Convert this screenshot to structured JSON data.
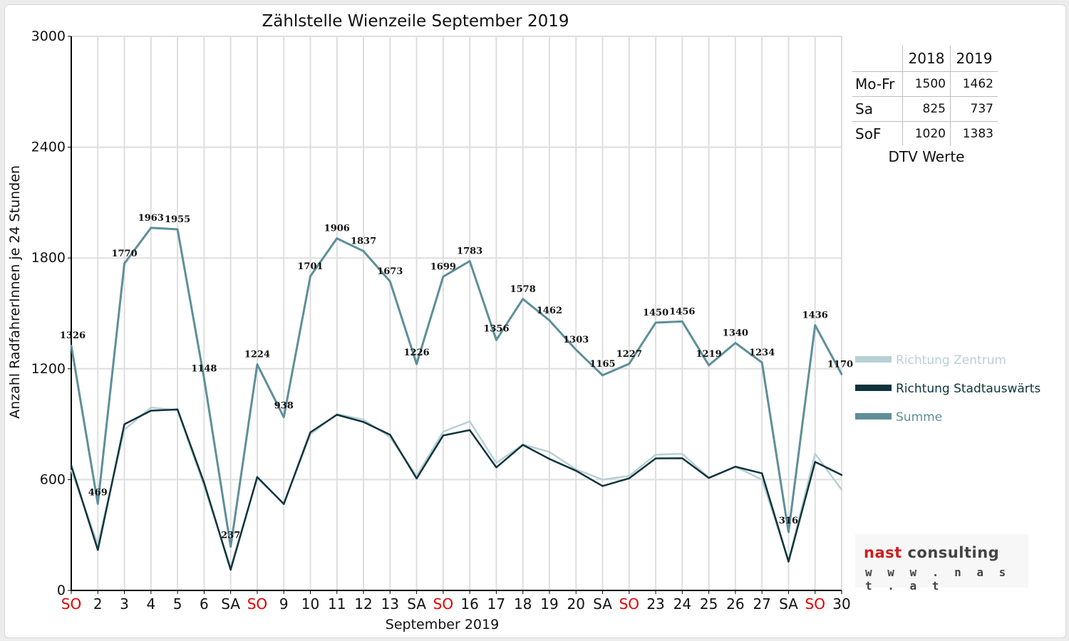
{
  "chart_data": {
    "type": "line",
    "title": "Zählstelle Wienzeile September 2019",
    "xlabel": "September 2019",
    "ylabel": "Anzahl RadfahrerInnen je 24 Stunden",
    "ylim": [
      0,
      3000
    ],
    "yticks": [
      "0",
      "600",
      "1200",
      "1800",
      "2400",
      "3000"
    ],
    "grid": true,
    "legend_position": "right",
    "categories": [
      "SO",
      "2",
      "3",
      "4",
      "5",
      "6",
      "SA",
      "SO",
      "9",
      "10",
      "11",
      "12",
      "13",
      "SA",
      "SO",
      "16",
      "17",
      "18",
      "19",
      "20",
      "SA",
      "SO",
      "23",
      "24",
      "25",
      "26",
      "27",
      "SA",
      "SO",
      "30"
    ],
    "weekend_categories": [
      "SO"
    ],
    "weekend_color": "#e00000",
    "series": [
      {
        "name": "Richtung Zentrum",
        "color": "#b8d0d4",
        "values": [
          650,
          250,
          870,
          990,
          975,
          565,
          125,
          610,
          470,
          845,
          955,
          925,
          830,
          620,
          860,
          915,
          690,
          790,
          750,
          655,
          600,
          620,
          735,
          740,
          610,
          670,
          600,
          160,
          740,
          545
        ]
      },
      {
        "name": "Richtung Stadtauswärts",
        "color": "#0f343c",
        "values": [
          676,
          219,
          900,
          973,
          980,
          583,
          112,
          614,
          468,
          856,
          951,
          912,
          843,
          606,
          839,
          868,
          666,
          788,
          712,
          648,
          565,
          607,
          715,
          716,
          609,
          670,
          634,
          156,
          696,
          625
        ]
      },
      {
        "name": "Summe",
        "color": "#5e8f99",
        "values": [
          1326,
          469,
          1770,
          1963,
          1955,
          1148,
          237,
          1224,
          938,
          1701,
          1906,
          1837,
          1673,
          1226,
          1699,
          1783,
          1356,
          1578,
          1462,
          1303,
          1165,
          1227,
          1450,
          1456,
          1219,
          1340,
          1234,
          316,
          1436,
          1170
        ],
        "labels": [
          "1326",
          "469",
          "1770",
          "1963",
          "1955",
          "1148",
          "237",
          "1224",
          "938",
          "1701",
          "1906",
          "1837",
          "1673",
          "1226",
          "1699",
          "1783",
          "1356",
          "1578",
          "1462",
          "1303",
          "1165",
          "1227",
          "1450",
          "1456",
          "1219",
          "1340",
          "1234",
          "316",
          "1436",
          "1170"
        ]
      }
    ]
  },
  "dtv_table": {
    "header": [
      "",
      "2018",
      "2019"
    ],
    "rows": [
      {
        "label": "Mo-Fr",
        "v2018": "1500",
        "v2019": "1462"
      },
      {
        "label": "Sa",
        "v2018": "825",
        "v2019": "737"
      },
      {
        "label": "SoF",
        "v2018": "1020",
        "v2019": "1383"
      }
    ],
    "caption": "DTV Werte"
  },
  "logo": {
    "word1": "nast",
    "word2": "consulting",
    "url": "w w w . n a s t . a t",
    "accent_color": "#cc1f1f"
  }
}
